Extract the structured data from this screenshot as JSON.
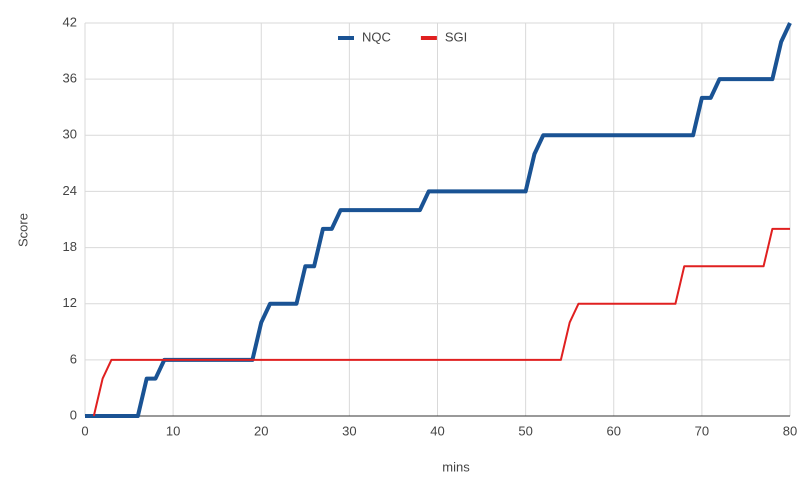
{
  "chart_data": {
    "type": "line",
    "x_label": "mins",
    "y_label": "Score",
    "series": [
      {
        "name": "NQC",
        "color": "#1a5394",
        "width": 4,
        "x": [
          0,
          6,
          7,
          8,
          9,
          19,
          20,
          21,
          24,
          25,
          26,
          27,
          28,
          29,
          38,
          39,
          50,
          51,
          52,
          69,
          70,
          71,
          72,
          78,
          79,
          80
        ],
        "values": [
          0,
          0,
          4,
          4,
          6,
          6,
          10,
          12,
          12,
          16,
          16,
          20,
          20,
          22,
          22,
          24,
          24,
          28,
          30,
          30,
          34,
          34,
          36,
          36,
          40,
          42
        ]
      },
      {
        "name": "SGI",
        "color": "#e02020",
        "width": 2,
        "x": [
          1,
          2,
          3,
          54,
          55,
          56,
          67,
          68,
          77,
          78,
          80
        ],
        "values": [
          0,
          4,
          6,
          6,
          10,
          12,
          12,
          16,
          16,
          20,
          20
        ]
      }
    ],
    "xlim": [
      0,
      80
    ],
    "xticks": [
      0,
      10,
      20,
      30,
      40,
      50,
      60,
      70,
      80
    ],
    "ylim": [
      0,
      42
    ],
    "yticks": [
      0,
      6,
      12,
      18,
      24,
      30,
      36,
      42
    ],
    "grid": true,
    "legend": "top"
  }
}
